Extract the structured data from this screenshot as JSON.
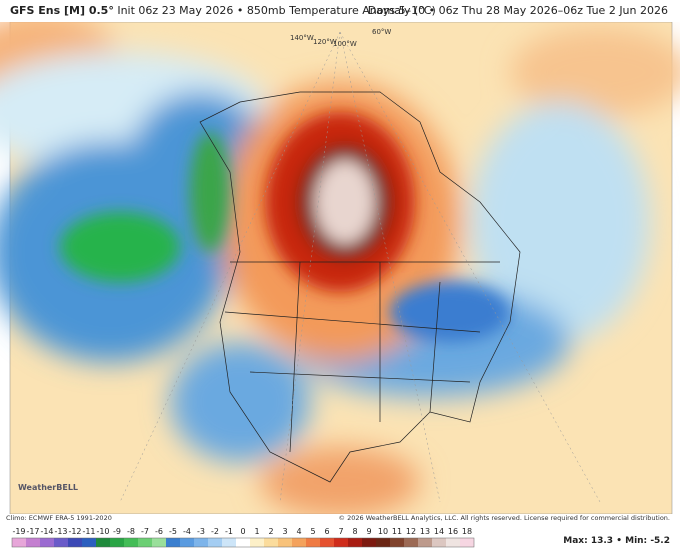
{
  "header": {
    "model": "GFS Ens [M] 0.5°",
    "init": "Init 06z 23 May 2026 • 850mb Temperature Anomaly (°C)",
    "valid": "Days 5–10 • 06z Thu 28 May 2026–06z Tue 2 Jun 2026"
  },
  "map": {
    "lon_labels": [
      "140°W",
      "120°W",
      "100°W",
      "60°W"
    ],
    "logo": "WeatherBELL"
  },
  "footer": {
    "climo": "Climo: ECMWF ERA-5 1991-2020",
    "copyright": "© 2026 WeatherBELL Analytics, LLC. All rights reserved. License required for commercial distribution."
  },
  "colorbar": {
    "labels": [
      -19,
      -17,
      -14,
      -13,
      -12,
      -11,
      -10,
      -9,
      -8,
      -7,
      -6,
      -5,
      -4,
      -3,
      -2,
      -1,
      0,
      1,
      2,
      3,
      4,
      5,
      6,
      7,
      8,
      9,
      10,
      11,
      12,
      13,
      14,
      16,
      18
    ],
    "colors": [
      "#e7a6d9",
      "#c47fd0",
      "#9b6bd1",
      "#6a5bc9",
      "#3c49b6",
      "#2b5fbf",
      "#1f8a3c",
      "#2aa545",
      "#44bd57",
      "#6ccf74",
      "#9adf9b",
      "#3b7fcf",
      "#5a9be0",
      "#7db4ea",
      "#a4cdf2",
      "#cde5f8",
      "#ffffff",
      "#fdf0c8",
      "#fbdc9c",
      "#f8c27a",
      "#f4a25c",
      "#ef7b43",
      "#e5512f",
      "#cf2c1b",
      "#a81c12",
      "#7d1a10",
      "#6b2615",
      "#80432d",
      "#9c6a55",
      "#bd9a8c",
      "#dcc7c1",
      "#efe4e1",
      "#f6d6e2"
    ]
  },
  "stats": {
    "max_label": "Max:",
    "max": 13.3,
    "separator": "•",
    "min_label": "Min:",
    "min": -5.2
  }
}
